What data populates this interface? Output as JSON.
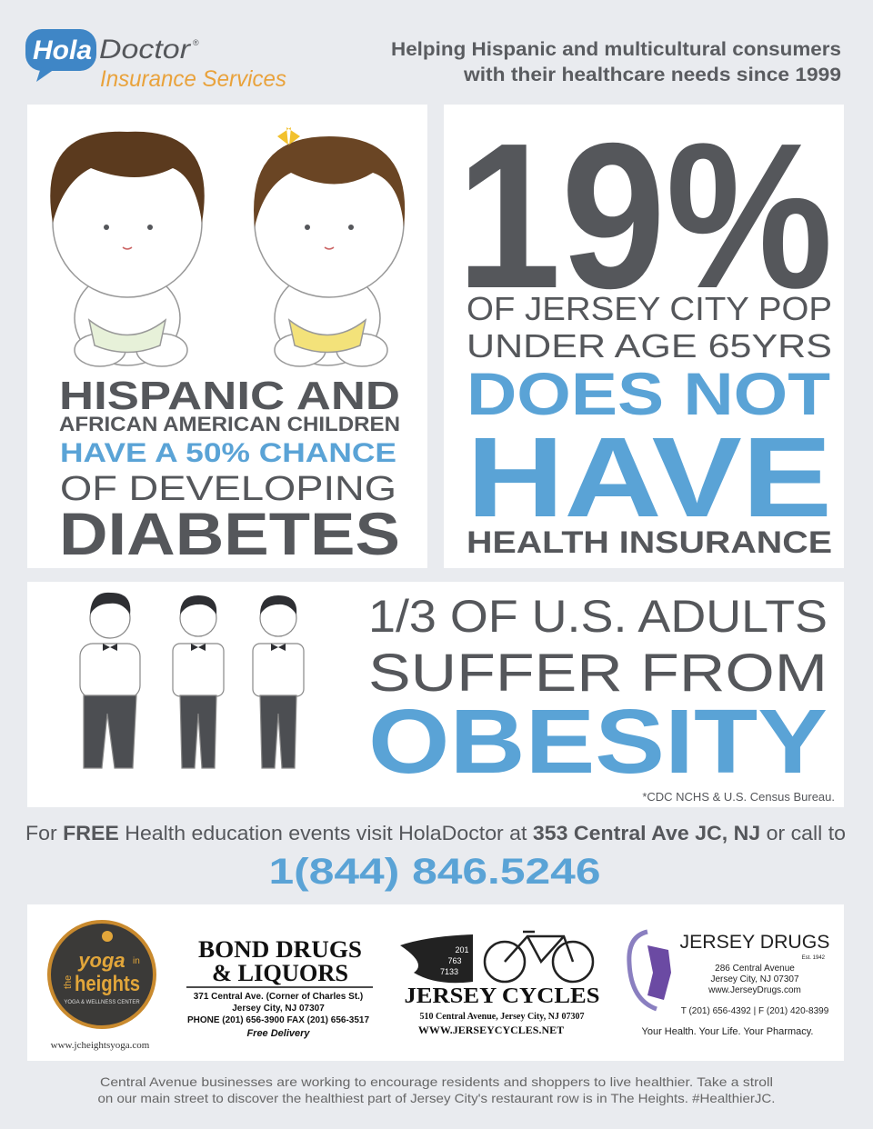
{
  "header": {
    "logo": {
      "hola": "Hola",
      "doctor": "Doctor",
      "trademark": "®",
      "subtitle": "Insurance Services"
    },
    "tagline": [
      "Helping Hispanic and multicultural consumers",
      "with their healthcare needs since 1999"
    ]
  },
  "diabetes_panel": {
    "lines": [
      "HISPANIC AND",
      "AFRICAN AMERICAN CHILDREN",
      "HAVE A 50% CHANCE",
      "OF DEVELOPING",
      "DIABETES"
    ]
  },
  "insurance_panel": {
    "stat": "19%",
    "lines": [
      "OF JERSEY CITY POP",
      "UNDER AGE 65YRS",
      "DOES NOT",
      "HAVE",
      "HEALTH INSURANCE"
    ]
  },
  "obesity_panel": {
    "lines": [
      "1/3 OF U.S. ADULTS",
      "SUFFER FROM",
      "OBESITY"
    ],
    "source": "*CDC NCHS & U.S. Census Bureau."
  },
  "call_to_action": {
    "parts": [
      "For ",
      "FREE",
      " Health education events visit HolaDoctor at ",
      "353 Central Ave JC, NJ",
      " or call to"
    ],
    "phone": "1(844) 846.5246"
  },
  "sponsors": {
    "yoga": {
      "logo": [
        "the",
        "yoga",
        "in",
        "heights",
        "YOGA & WELLNESS CENTER"
      ],
      "url": "www.jcheightsyoga.com"
    },
    "bond_drugs": {
      "name": [
        "BOND DRUGS",
        "& LIQUORS"
      ],
      "address": [
        "371 Central Ave. (Corner of Charles St.)",
        "Jersey City, NJ 07307",
        "PHONE (201) 656-3900  FAX (201) 656-3517"
      ],
      "note": "Free Delivery"
    },
    "jersey_cycles": {
      "phone_parts": [
        "201",
        "763",
        "7133"
      ],
      "name": "JERSEY CYCLES",
      "address": "510 Central Avenue, Jersey City, NJ 07307",
      "url": "WWW.JERSEYCYCLES.NET"
    },
    "jersey_drugs": {
      "name": "JERSEY DRUGS",
      "established": "Est. 1942",
      "address": [
        "286 Central Avenue",
        "Jersey City, NJ 07307",
        "www.JerseyDrugs.com"
      ],
      "phone": "T (201) 656-4392 | F (201) 420-8399",
      "slogan": "Your Health. Your Life. Your Pharmacy."
    }
  },
  "footer": [
    "Central Avenue businesses are working to encourage residents and shoppers to live healthier. Take a stroll",
    "on our main street to discover the healthiest part of Jersey City's restaurant row is in The Heights. #HealthierJC."
  ]
}
